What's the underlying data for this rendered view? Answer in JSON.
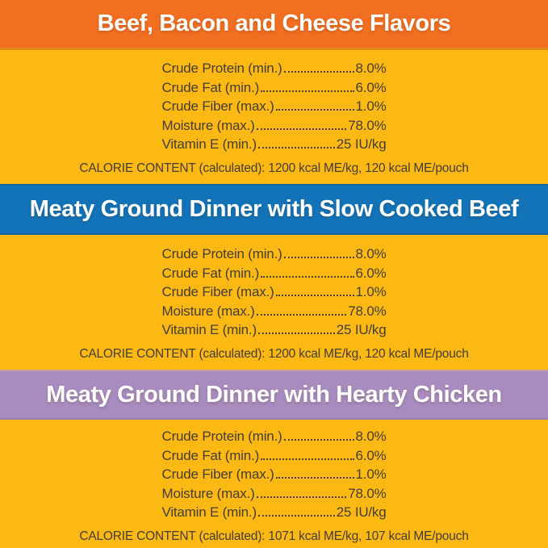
{
  "label": {
    "background_color": "#FDB913",
    "body_text_color": "#433D36"
  },
  "sections": [
    {
      "banner": {
        "label": "Beef, Bacon and Cheese Flavors",
        "color": "#F26F22",
        "text_color": "#FFFFFF"
      },
      "rows": [
        {
          "label": "Crude Protein (min.)",
          "value": "8.0%"
        },
        {
          "label": "Crude Fat (min.)",
          "value": "6.0%"
        },
        {
          "label": "Crude Fiber (max.)",
          "value": "1.0%"
        },
        {
          "label": "Moisture (max.)",
          "value": "78.0%"
        },
        {
          "label": "Vitamin E (min.)",
          "value": "25 IU/kg"
        }
      ],
      "calorie_line": "CALORIE CONTENT (calculated): 1200 kcal ME/kg, 120 kcal ME/pouch"
    },
    {
      "banner": {
        "label": "Meaty Ground Dinner with Slow Cooked Beef",
        "color": "#1273B9",
        "text_color": "#FFFFFF"
      },
      "rows": [
        {
          "label": "Crude Protein (min.)",
          "value": "8.0%"
        },
        {
          "label": "Crude Fat (min.)",
          "value": "6.0%"
        },
        {
          "label": "Crude Fiber (max.)",
          "value": "1.0%"
        },
        {
          "label": "Moisture (max.)",
          "value": "78.0%"
        },
        {
          "label": "Vitamin E (min.)",
          "value": "25 IU/kg"
        }
      ],
      "calorie_line": "CALORIE CONTENT (calculated): 1200 kcal ME/kg, 120 kcal ME/pouch"
    },
    {
      "banner": {
        "label": "Meaty Ground Dinner with Hearty Chicken",
        "color": "#A88CBF",
        "text_color": "#FFFFFF"
      },
      "rows": [
        {
          "label": "Crude Protein (min.)",
          "value": "8.0%"
        },
        {
          "label": "Crude Fat (min.)",
          "value": "6.0%"
        },
        {
          "label": "Crude Fiber (max.)",
          "value": "1.0%"
        },
        {
          "label": "Moisture (max.)",
          "value": "78.0%"
        },
        {
          "label": "Vitamin E (min.)",
          "value": "25 IU/kg"
        }
      ],
      "calorie_line": "CALORIE CONTENT (calculated): 1071 kcal ME/kg, 107 kcal ME/pouch"
    }
  ]
}
